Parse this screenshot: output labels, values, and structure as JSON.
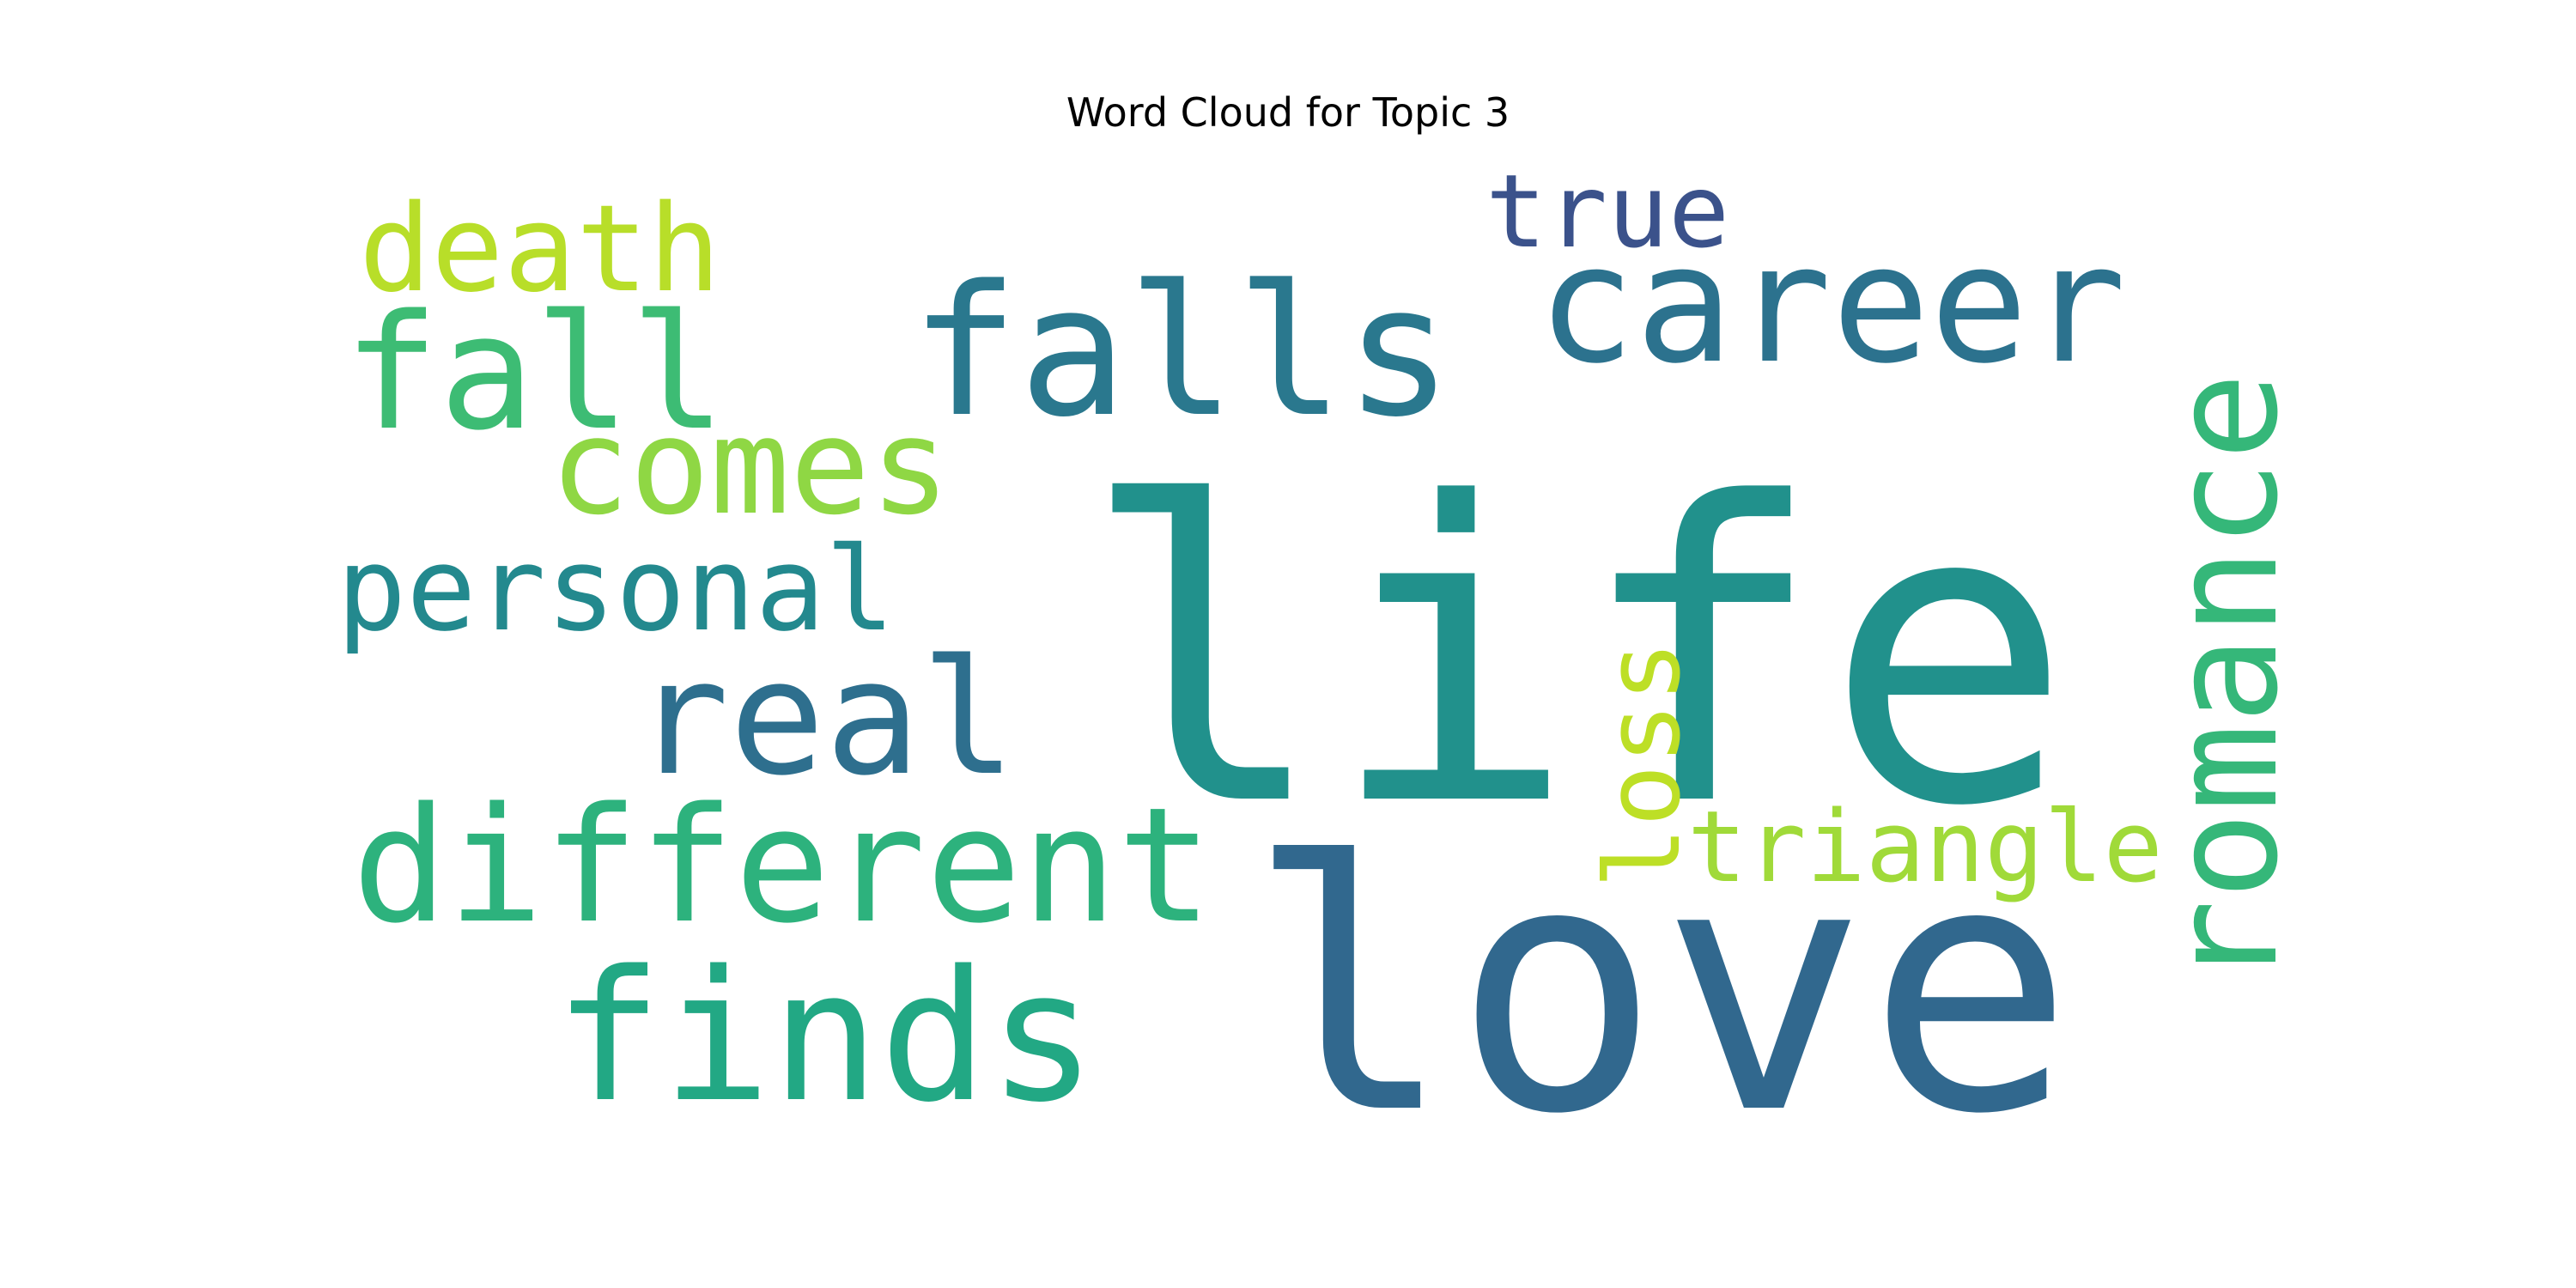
{
  "chart_data": {
    "type": "wordcloud",
    "title": "Word Cloud for Topic 3",
    "words": [
      {
        "text": "life",
        "weight": 1.0,
        "color": "#21918c"
      },
      {
        "text": "love",
        "weight": 0.78,
        "color": "#31688e"
      },
      {
        "text": "falls",
        "weight": 0.34,
        "color": "#2a788e"
      },
      {
        "text": "career",
        "weight": 0.3,
        "color": "#2c728e"
      },
      {
        "text": "romance",
        "weight": 0.3,
        "color": "#35b779"
      },
      {
        "text": "finds",
        "weight": 0.33,
        "color": "#22a884"
      },
      {
        "text": "different",
        "weight": 0.3,
        "color": "#2db27d"
      },
      {
        "text": "real",
        "weight": 0.3,
        "color": "#2e6f8e"
      },
      {
        "text": "fall",
        "weight": 0.29,
        "color": "#3dbc74"
      },
      {
        "text": "comes",
        "weight": 0.27,
        "color": "#8fd744"
      },
      {
        "text": "personal",
        "weight": 0.22,
        "color": "#23898e"
      },
      {
        "text": "death",
        "weight": 0.23,
        "color": "#b8de29"
      },
      {
        "text": "true",
        "weight": 0.19,
        "color": "#3b528b"
      },
      {
        "text": "loss",
        "weight": 0.19,
        "color": "#bddf26"
      },
      {
        "text": "triangle",
        "weight": 0.19,
        "color": "#a0da39"
      }
    ]
  }
}
